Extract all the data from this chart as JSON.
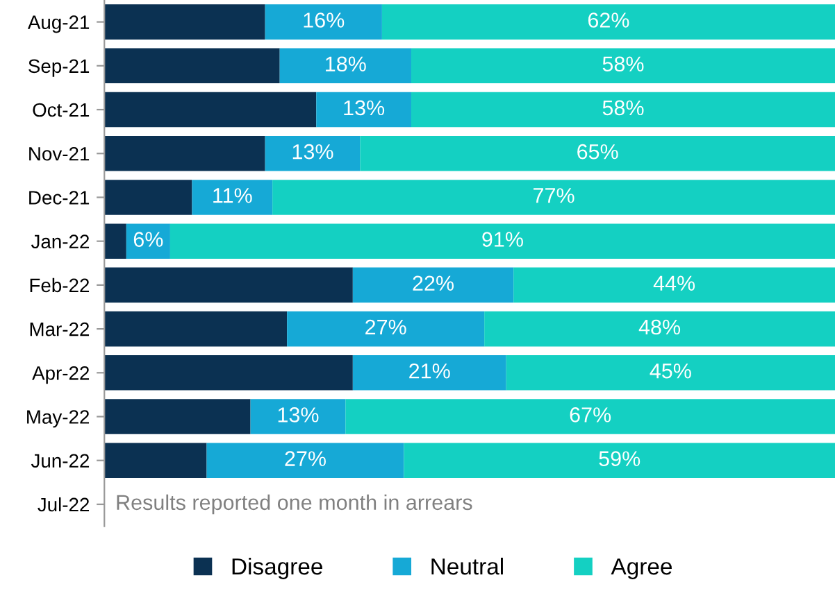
{
  "chart_data": {
    "type": "bar",
    "orientation": "horizontal",
    "stacked": true,
    "categories": [
      "Aug-21",
      "Sep-21",
      "Oct-21",
      "Nov-21",
      "Dec-21",
      "Jan-22",
      "Feb-22",
      "Mar-22",
      "Apr-22",
      "May-22",
      "Jun-22",
      "Jul-22"
    ],
    "series": [
      {
        "name": "Disagree",
        "color": "#0b3152",
        "values": [
          22,
          24,
          29,
          22,
          12,
          3,
          34,
          25,
          34,
          20,
          14,
          null
        ],
        "value_labels": [
          null,
          null,
          null,
          null,
          null,
          null,
          null,
          null,
          null,
          null,
          null,
          null
        ]
      },
      {
        "name": "Neutral",
        "color": "#16a9d6",
        "values": [
          16,
          18,
          13,
          13,
          11,
          6,
          22,
          27,
          21,
          13,
          27,
          null
        ],
        "value_labels": [
          "16%",
          "18%",
          "13%",
          "13%",
          "11%",
          "6%",
          "22%",
          "27%",
          "21%",
          "13%",
          "27%",
          null
        ]
      },
      {
        "name": "Agree",
        "color": "#14d0c2",
        "values": [
          62,
          58,
          58,
          65,
          77,
          91,
          44,
          48,
          45,
          67,
          59,
          null
        ],
        "value_labels": [
          "62%",
          "58%",
          "58%",
          "65%",
          "77%",
          "91%",
          "44%",
          "48%",
          "45%",
          "67%",
          "59%",
          null
        ]
      }
    ],
    "xlim": [
      0,
      100
    ],
    "tick_labels": "y",
    "grid": false,
    "legend": "bottom",
    "annotations": [
      "Results reported one month in arrears"
    ]
  }
}
